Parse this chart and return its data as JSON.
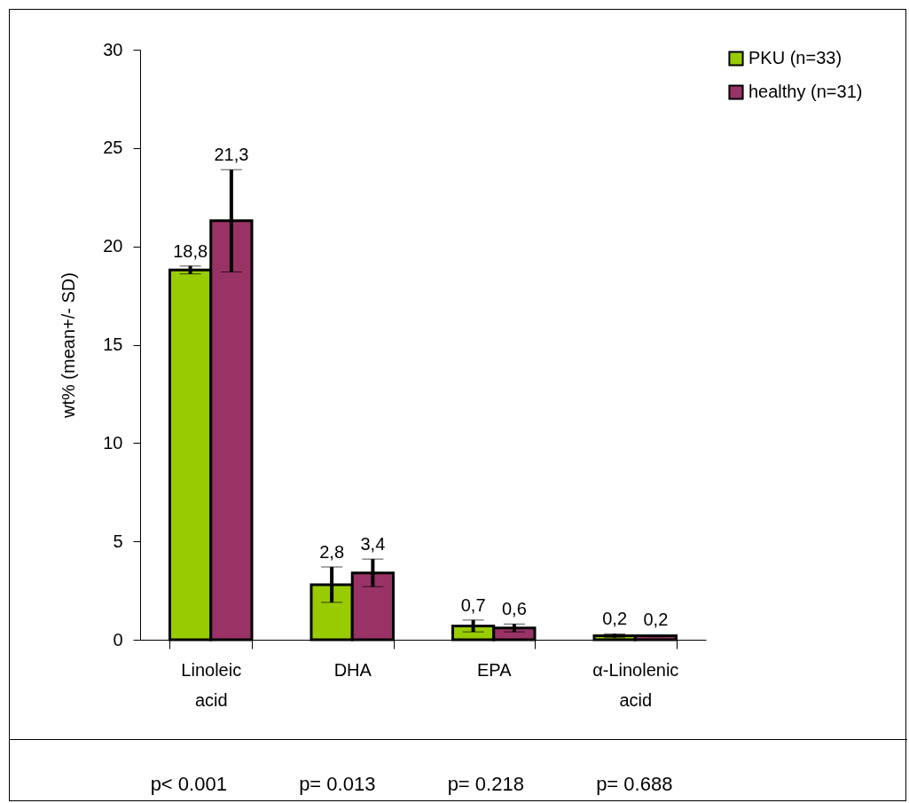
{
  "chart_data": {
    "type": "bar",
    "ylabel": "wt% (mean+/- SD)",
    "categories": [
      "Linoleic acid",
      "DHA",
      "EPA",
      "α-Linolenic acid"
    ],
    "series": [
      {
        "name": "PKU (n=33)",
        "color": "#99cc00",
        "values": [
          18.8,
          2.8,
          0.7,
          0.2
        ],
        "errors": [
          0.2,
          0.9,
          0.3,
          0.1
        ],
        "value_labels": [
          "18,8",
          "2,8",
          "0,7",
          "0,2"
        ]
      },
      {
        "name": "healthy (n=31)",
        "color": "#993366",
        "values": [
          21.3,
          3.4,
          0.6,
          0.2
        ],
        "errors": [
          2.6,
          0.7,
          0.2,
          0.05
        ],
        "value_labels": [
          "21,3",
          "3,4",
          "0,6",
          "0,2"
        ]
      }
    ],
    "ylim": [
      0,
      30
    ],
    "yticks": [
      0,
      5,
      10,
      15,
      20,
      25,
      30
    ],
    "legend": "right",
    "grid": false,
    "annotations": [
      "p< 0.001",
      "p= 0.013",
      "p= 0.218",
      "p= 0.688"
    ]
  }
}
